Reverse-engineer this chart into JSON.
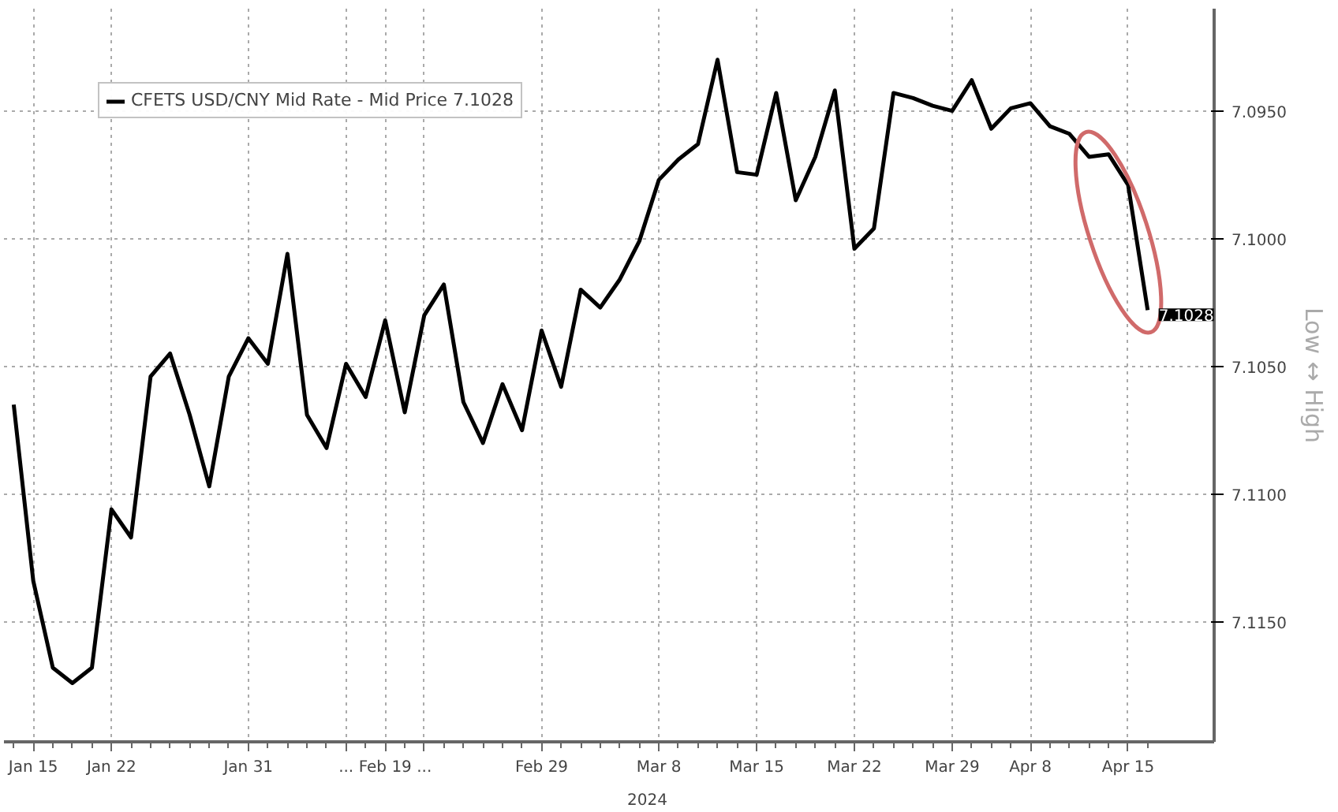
{
  "chart_data": {
    "type": "line",
    "categories": [
      null,
      "Jan 15",
      null,
      null,
      null,
      "Jan 22",
      null,
      null,
      null,
      null,
      null,
      null,
      "Jan 31",
      null,
      null,
      null,
      null,
      "...",
      null,
      "Feb 19",
      null,
      "...",
      null,
      null,
      null,
      null,
      null,
      "Feb 29",
      null,
      null,
      null,
      null,
      null,
      "Mar 8",
      null,
      null,
      null,
      null,
      "Mar 15",
      null,
      null,
      null,
      null,
      "Mar 22",
      null,
      null,
      null,
      null,
      "Mar 29",
      null,
      null,
      null,
      "Apr 8",
      null,
      null,
      null,
      null,
      "Apr 15",
      null
    ],
    "series": [
      {
        "name": "CFETS USD/CNY Mid Rate - Mid Price 7.1028",
        "color": "#000000",
        "values": [
          7.1065,
          7.1134,
          7.1168,
          7.1174,
          7.1168,
          7.1106,
          7.1117,
          7.1054,
          7.1045,
          7.1069,
          7.1097,
          7.1054,
          7.1039,
          7.1049,
          7.1006,
          7.1069,
          7.1082,
          7.1049,
          7.1062,
          7.1032,
          7.1068,
          7.103,
          7.1018,
          7.1064,
          7.108,
          7.1057,
          7.1075,
          7.1036,
          7.1058,
          7.102,
          7.1027,
          7.1016,
          7.1001,
          7.0977,
          7.0969,
          7.0963,
          7.093,
          7.0974,
          7.0975,
          7.0943,
          7.0985,
          7.0968,
          7.0942,
          7.1004,
          7.0996,
          7.0943,
          7.0945,
          7.0948,
          7.095,
          7.0938,
          7.0957,
          7.0949,
          7.0947,
          7.0956,
          7.0959,
          7.0968,
          7.0967,
          7.0979,
          7.1028
        ]
      }
    ],
    "ylim": [
      7.1197,
      7.091
    ],
    "yticks": [
      {
        "value": 7.095,
        "label": "7.0950"
      },
      {
        "value": 7.1,
        "label": "7.1000"
      },
      {
        "value": 7.105,
        "label": "7.1050"
      },
      {
        "value": 7.11,
        "label": "7.1100"
      },
      {
        "value": 7.115,
        "label": "7.1150"
      }
    ],
    "grid": true,
    "legend": "top left",
    "line_style": "solid",
    "annotations": [
      "2024",
      "Low ↔ High",
      "7.1028"
    ]
  }
}
